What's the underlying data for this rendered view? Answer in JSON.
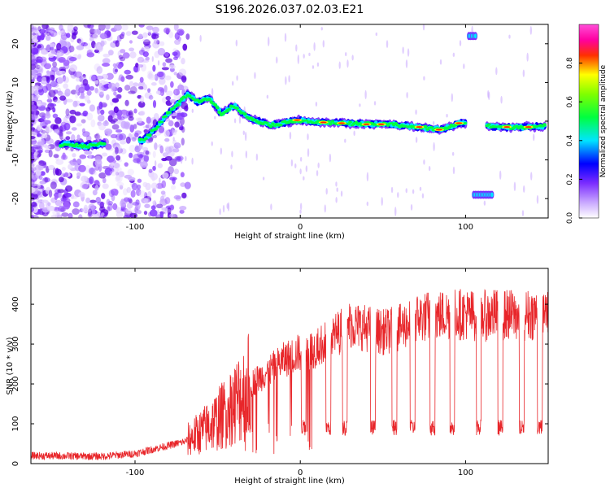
{
  "figure_title": "S196.2026.037.02.03.E21",
  "chart_data": [
    {
      "type": "heatmap",
      "title": "S196.2026.037.02.03.E21",
      "xlabel": "Height of straight line (km)",
      "ylabel": "Frequency (Hz)",
      "xlim": [
        -163,
        150
      ],
      "ylim": [
        -25,
        25
      ],
      "xticks": [
        -100,
        0,
        100
      ],
      "yticks": [
        -20,
        -10,
        0,
        10,
        20
      ],
      "xtick_labels": [
        "-100",
        "0",
        "100"
      ],
      "ytick_labels": [
        "-20",
        "-10",
        "0",
        "10",
        "20"
      ],
      "colorbar": {
        "label": "Normalized spectral amplitude",
        "range": [
          0,
          1
        ],
        "ticks": [
          0.0,
          0.2,
          0.4,
          0.6,
          0.8
        ],
        "tick_labels": [
          "0.0",
          "0.2",
          "0.4",
          "0.6",
          "0.8"
        ],
        "colors": [
          "#ffffff",
          "#7b2cff",
          "#0000ff",
          "#00e5ff",
          "#00ff00",
          "#ffff00",
          "#ff0000",
          "#ff40ff"
        ]
      },
      "frequency_trace": [
        [
          -140,
          -6
        ],
        [
          -130,
          -6.5
        ],
        [
          -122,
          -6
        ],
        [
          -95,
          -5
        ],
        [
          -88,
          -2
        ],
        [
          -80,
          2
        ],
        [
          -75,
          4
        ],
        [
          -68,
          7
        ],
        [
          -62,
          5
        ],
        [
          -55,
          6
        ],
        [
          -48,
          2
        ],
        [
          -40,
          4
        ],
        [
          -32,
          1
        ],
        [
          -25,
          0
        ],
        [
          -18,
          -1
        ],
        [
          -10,
          -0.5
        ],
        [
          -2,
          0.3
        ],
        [
          10,
          -0.3
        ],
        [
          25,
          -0.5
        ],
        [
          40,
          -0.8
        ],
        [
          55,
          -0.8
        ],
        [
          70,
          -1.5
        ],
        [
          85,
          -2.2
        ],
        [
          97,
          -0.5
        ],
        [
          120,
          -1.5
        ],
        [
          135,
          -1.5
        ],
        [
          148,
          -1.3
        ]
      ],
      "outlier_segments": [
        {
          "x": [
            102,
            106
          ],
          "y": 22
        },
        {
          "x": [
            105,
            116
          ],
          "y": -19
        }
      ]
    },
    {
      "type": "line",
      "xlabel": "Height of straight line (km)",
      "ylabel": "SNR (10 * v/v)",
      "xlim": [
        -163,
        150
      ],
      "ylim": [
        0,
        490
      ],
      "xticks": [
        -100,
        0,
        100
      ],
      "yticks": [
        0,
        100,
        200,
        300,
        400
      ],
      "xtick_labels": [
        "-100",
        "0",
        "100"
      ],
      "ytick_labels": [
        "0",
        "100",
        "200",
        "300",
        "400"
      ],
      "series": [
        {
          "name": "SNR",
          "color": "#e8262a",
          "envelope": [
            [
              -163,
              20
            ],
            [
              -120,
              18
            ],
            [
              -100,
              25
            ],
            [
              -90,
              35
            ],
            [
              -80,
              45
            ],
            [
              -70,
              55
            ],
            [
              -60,
              80
            ],
            [
              -50,
              110
            ],
            [
              -40,
              150
            ],
            [
              -30,
              200
            ],
            [
              -20,
              230
            ],
            [
              -10,
              260
            ],
            [
              0,
              280
            ],
            [
              10,
              290
            ],
            [
              20,
              320
            ],
            [
              30,
              350
            ],
            [
              40,
              340
            ],
            [
              50,
              330
            ],
            [
              60,
              340
            ],
            [
              70,
              365
            ],
            [
              80,
              370
            ],
            [
              90,
              375
            ],
            [
              100,
              375
            ],
            [
              110,
              370
            ],
            [
              120,
              375
            ],
            [
              130,
              372
            ],
            [
              140,
              375
            ],
            [
              150,
              378
            ]
          ],
          "dips_x": [
            2,
            17,
            27,
            44,
            57,
            68,
            80,
            92,
            108,
            121,
            134,
            145
          ],
          "dip_level": 90
        }
      ]
    }
  ]
}
